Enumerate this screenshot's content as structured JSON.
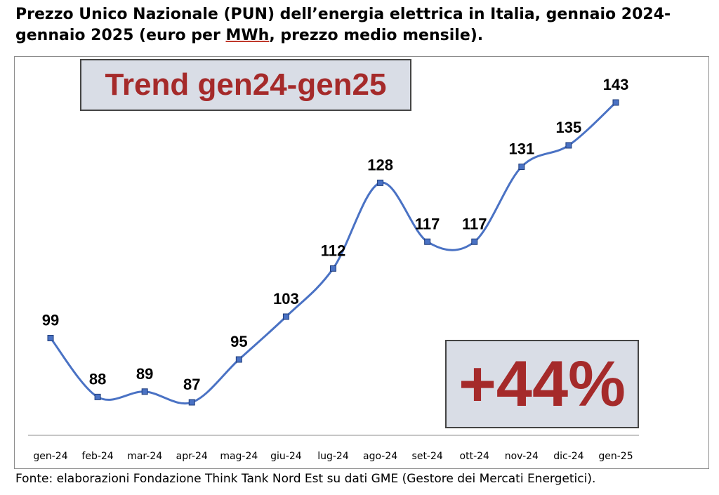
{
  "title": {
    "part1": "Prezzo Unico Nazionale (PUN) dell’energia elettrica in Italia, gennaio 2024-gennaio 2025 (euro per ",
    "unit": "MWh",
    "part2": ", prezzo medio mensile)."
  },
  "trend_box": "Trend gen24-gen25",
  "percent_box": "+44%",
  "source": "Fonte: elaborazioni Fondazione Think Tank Nord Est su dati GME (Gestore dei Mercati Energetici).",
  "chart_data": {
    "type": "line",
    "categories": [
      "gen-24",
      "feb-24",
      "mar-24",
      "apr-24",
      "mag-24",
      "giu-24",
      "lug-24",
      "ago-24",
      "set-24",
      "ott-24",
      "nov-24",
      "dic-24",
      "gen-25"
    ],
    "values": [
      99,
      88,
      89,
      87,
      95,
      103,
      112,
      128,
      117,
      117,
      131,
      135,
      143
    ],
    "smooth": true,
    "data_labels": true,
    "grid": false,
    "legend": "none",
    "line_color": "#4a72c4",
    "marker_color": "#4a72c4",
    "label_color": "#a52a2a"
  }
}
